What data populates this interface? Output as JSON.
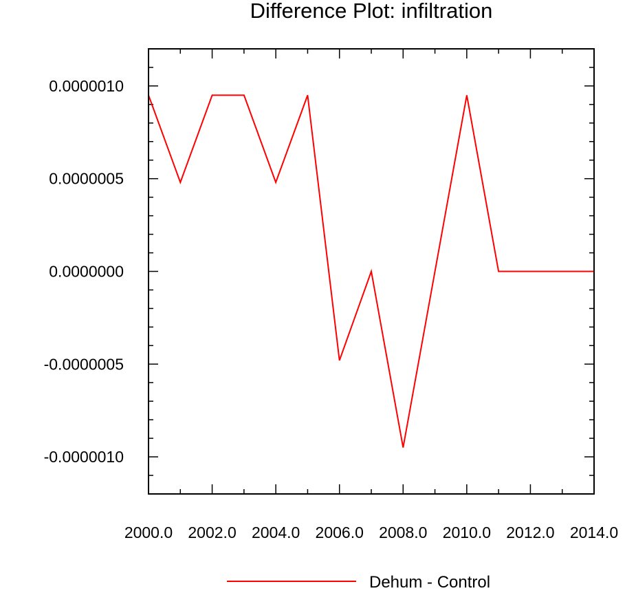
{
  "chart_data": {
    "type": "line",
    "title": "Difference Plot: infiltration",
    "xlabel": "",
    "ylabel": "",
    "xlim": [
      2000,
      2014
    ],
    "ylim": [
      -1.2e-06,
      1.2e-06
    ],
    "x_ticks": [
      2000,
      2002,
      2004,
      2006,
      2008,
      2010,
      2012,
      2014
    ],
    "x_tick_labels": [
      "2000.0",
      "2002.0",
      "2004.0",
      "2006.0",
      "2008.0",
      "2010.0",
      "2012.0",
      "2014.0"
    ],
    "y_ticks": [
      1e-06,
      5e-07,
      0,
      -5e-07,
      -1e-06
    ],
    "y_tick_labels": [
      "0.0000010",
      "0.0000005",
      "0.0000000",
      "-0.0000005",
      "-0.0000010"
    ],
    "grid": false,
    "legend_position": "bottom-center",
    "series": [
      {
        "name": "Dehum - Control",
        "color": "#ff0000",
        "x": [
          2000,
          2001,
          2002,
          2003,
          2004,
          2005,
          2006,
          2007,
          2008,
          2009,
          2010,
          2011,
          2012,
          2013,
          2014
        ],
        "y": [
          9.5e-07,
          4.8e-07,
          9.5e-07,
          9.5e-07,
          4.8e-07,
          9.5e-07,
          -4.8e-07,
          0,
          -9.5e-07,
          0,
          9.5e-07,
          0,
          0,
          0,
          0
        ]
      }
    ]
  }
}
